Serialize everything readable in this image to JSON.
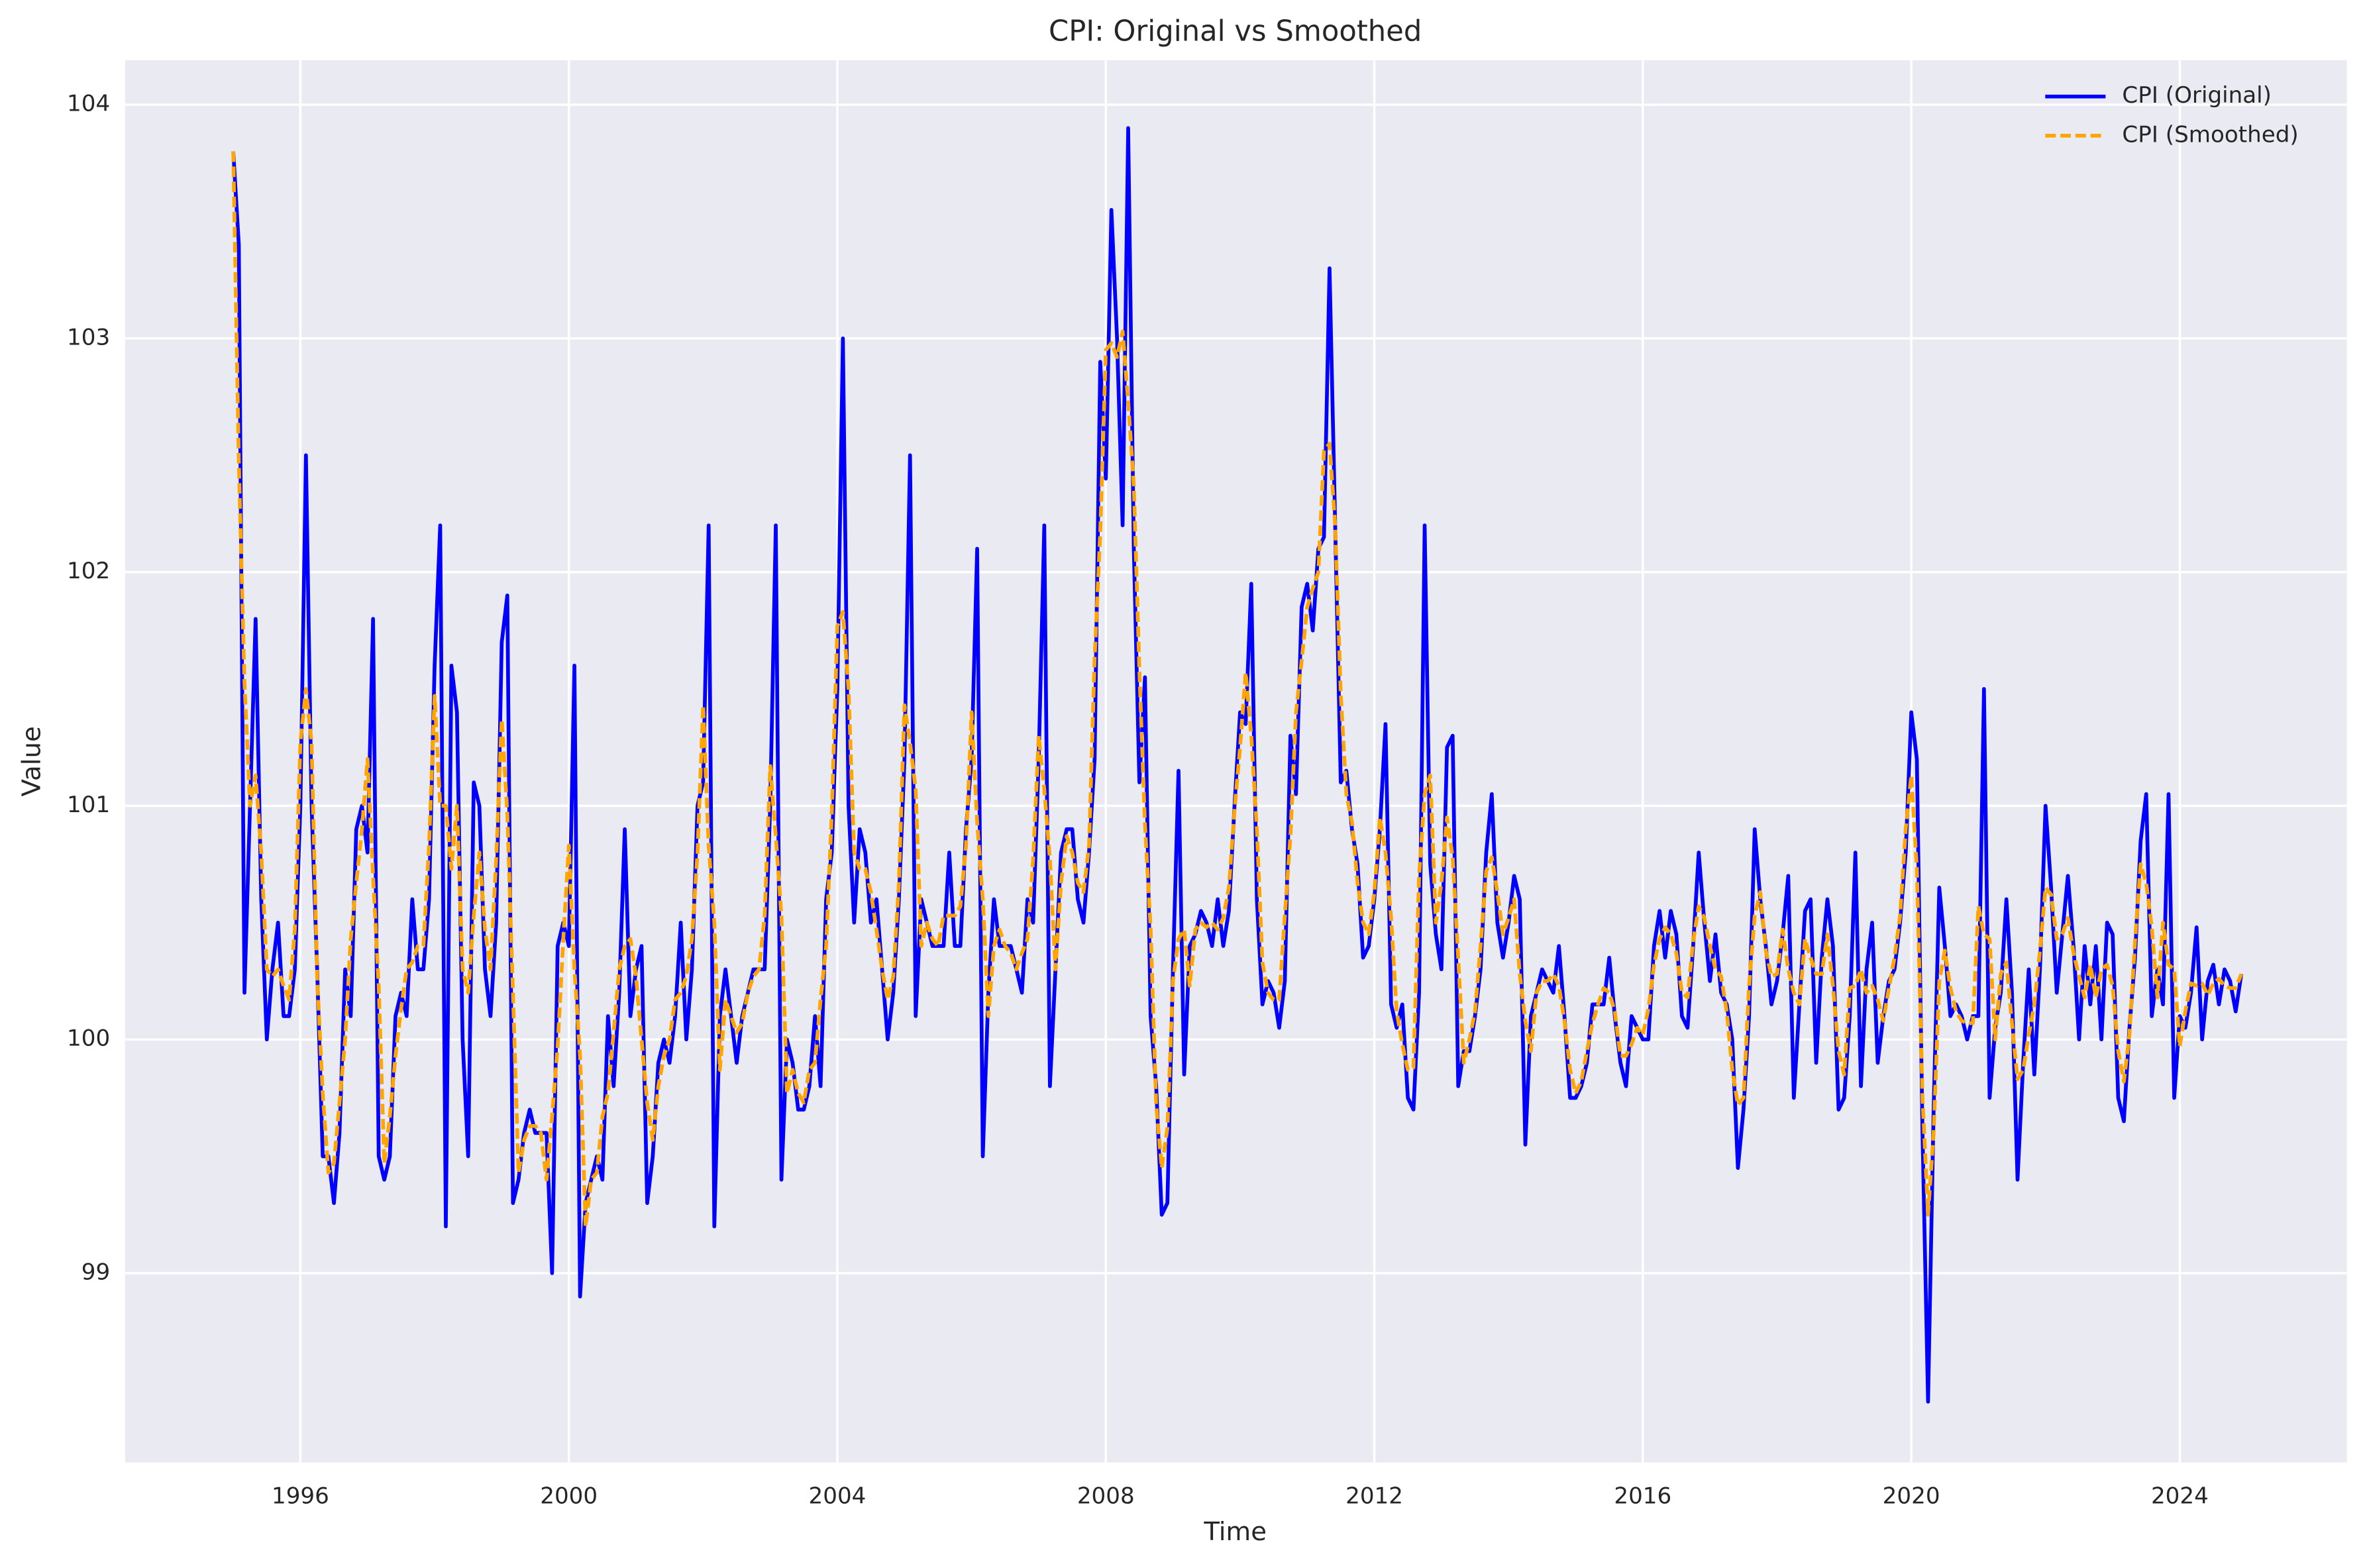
{
  "chart_data": {
    "type": "line",
    "title": "CPI: Original vs Smoothed",
    "x_label": "Time",
    "y_label": "Value",
    "x": [
      1995,
      1995.083,
      1995.167,
      1995.25,
      1995.333,
      1995.417,
      1995.5,
      1995.583,
      1995.667,
      1995.75,
      1995.833,
      1995.917,
      1996,
      1996.083,
      1996.167,
      1996.25,
      1996.333,
      1996.417,
      1996.5,
      1996.583,
      1996.667,
      1996.75,
      1996.833,
      1996.917,
      1997,
      1997.083,
      1997.167,
      1997.25,
      1997.333,
      1997.417,
      1997.5,
      1997.583,
      1997.667,
      1997.75,
      1997.833,
      1997.917,
      1998,
      1998.083,
      1998.167,
      1998.25,
      1998.333,
      1998.417,
      1998.5,
      1998.583,
      1998.667,
      1998.75,
      1998.833,
      1998.917,
      1999,
      1999.083,
      1999.167,
      1999.25,
      1999.333,
      1999.417,
      1999.5,
      1999.583,
      1999.667,
      1999.75,
      1999.833,
      1999.917,
      2000,
      2000.083,
      2000.167,
      2000.25,
      2000.333,
      2000.417,
      2000.5,
      2000.583,
      2000.667,
      2000.75,
      2000.833,
      2000.917,
      2001,
      2001.083,
      2001.167,
      2001.25,
      2001.333,
      2001.417,
      2001.5,
      2001.583,
      2001.667,
      2001.75,
      2001.833,
      2001.917,
      2002,
      2002.083,
      2002.167,
      2002.25,
      2002.333,
      2002.417,
      2002.5,
      2002.583,
      2002.667,
      2002.75,
      2002.833,
      2002.917,
      2003,
      2003.083,
      2003.167,
      2003.25,
      2003.333,
      2003.417,
      2003.5,
      2003.583,
      2003.667,
      2003.75,
      2003.833,
      2003.917,
      2004,
      2004.083,
      2004.167,
      2004.25,
      2004.333,
      2004.417,
      2004.5,
      2004.583,
      2004.667,
      2004.75,
      2004.833,
      2004.917,
      2005,
      2005.083,
      2005.167,
      2005.25,
      2005.333,
      2005.417,
      2005.5,
      2005.583,
      2005.667,
      2005.75,
      2005.833,
      2005.917,
      2006,
      2006.083,
      2006.167,
      2006.25,
      2006.333,
      2006.417,
      2006.5,
      2006.583,
      2006.667,
      2006.75,
      2006.833,
      2006.917,
      2007,
      2007.083,
      2007.167,
      2007.25,
      2007.333,
      2007.417,
      2007.5,
      2007.583,
      2007.667,
      2007.75,
      2007.833,
      2007.917,
      2008,
      2008.083,
      2008.167,
      2008.25,
      2008.333,
      2008.417,
      2008.5,
      2008.583,
      2008.667,
      2008.75,
      2008.833,
      2008.917,
      2009,
      2009.083,
      2009.167,
      2009.25,
      2009.333,
      2009.417,
      2009.5,
      2009.583,
      2009.667,
      2009.75,
      2009.833,
      2009.917,
      2010,
      2010.083,
      2010.167,
      2010.25,
      2010.333,
      2010.417,
      2010.5,
      2010.583,
      2010.667,
      2010.75,
      2010.833,
      2010.917,
      2011,
      2011.083,
      2011.167,
      2011.25,
      2011.333,
      2011.417,
      2011.5,
      2011.583,
      2011.667,
      2011.75,
      2011.833,
      2011.917,
      2012,
      2012.083,
      2012.167,
      2012.25,
      2012.333,
      2012.417,
      2012.5,
      2012.583,
      2012.667,
      2012.75,
      2012.833,
      2012.917,
      2013,
      2013.083,
      2013.167,
      2013.25,
      2013.333,
      2013.417,
      2013.5,
      2013.583,
      2013.667,
      2013.75,
      2013.833,
      2013.917,
      2014,
      2014.083,
      2014.167,
      2014.25,
      2014.333,
      2014.417,
      2014.5,
      2014.583,
      2014.667,
      2014.75,
      2014.833,
      2014.917,
      2015,
      2015.083,
      2015.167,
      2015.25,
      2015.333,
      2015.417,
      2015.5,
      2015.583,
      2015.667,
      2015.75,
      2015.833,
      2015.917,
      2016,
      2016.083,
      2016.167,
      2016.25,
      2016.333,
      2016.417,
      2016.5,
      2016.583,
      2016.667,
      2016.75,
      2016.833,
      2016.917,
      2017,
      2017.083,
      2017.167,
      2017.25,
      2017.333,
      2017.417,
      2017.5,
      2017.583,
      2017.667,
      2017.75,
      2017.833,
      2017.917,
      2018,
      2018.083,
      2018.167,
      2018.25,
      2018.333,
      2018.417,
      2018.5,
      2018.583,
      2018.667,
      2018.75,
      2018.833,
      2018.917,
      2019,
      2019.083,
      2019.167,
      2019.25,
      2019.333,
      2019.417,
      2019.5,
      2019.583,
      2019.667,
      2019.75,
      2019.833,
      2019.917,
      2020,
      2020.083,
      2020.167,
      2020.25,
      2020.333,
      2020.417,
      2020.5,
      2020.583,
      2020.667,
      2020.75,
      2020.833,
      2020.917,
      2021,
      2021.083,
      2021.167,
      2021.25,
      2021.333,
      2021.417,
      2021.5,
      2021.583,
      2021.667,
      2021.75,
      2021.833,
      2021.917,
      2022,
      2022.083,
      2022.167,
      2022.25,
      2022.333,
      2022.417,
      2022.5,
      2022.583,
      2022.667,
      2022.75,
      2022.833,
      2022.917,
      2023,
      2023.083,
      2023.167,
      2023.25,
      2023.333,
      2023.417,
      2023.5,
      2023.583,
      2023.667,
      2023.75,
      2023.833,
      2023.917,
      2024,
      2024.083,
      2024.167,
      2024.25,
      2024.333,
      2024.417,
      2024.5,
      2024.583,
      2024.667,
      2024.75,
      2024.833,
      2024.917
    ],
    "series": [
      {
        "name": "CPI (Original)",
        "color": "#0000ff",
        "linestyle": "solid",
        "values": [
          103.8,
          103.4,
          100.2,
          101.0,
          101.8,
          100.6,
          100.0,
          100.3,
          100.5,
          100.1,
          100.1,
          100.3,
          101.0,
          102.5,
          101.0,
          100.3,
          99.5,
          99.5,
          99.3,
          99.6,
          100.3,
          100.1,
          100.9,
          101.0,
          100.8,
          101.8,
          99.5,
          99.4,
          99.5,
          100.1,
          100.2,
          100.1,
          100.6,
          100.3,
          100.3,
          100.6,
          101.6,
          102.2,
          99.2,
          101.6,
          101.4,
          100.0,
          99.5,
          101.1,
          101.0,
          100.3,
          100.1,
          100.5,
          101.7,
          101.9,
          99.3,
          99.4,
          99.6,
          99.7,
          99.6,
          99.6,
          99.6,
          99.0,
          100.4,
          100.5,
          100.4,
          101.6,
          98.9,
          99.3,
          99.4,
          99.5,
          99.4,
          100.1,
          99.8,
          100.2,
          100.9,
          100.1,
          100.3,
          100.4,
          99.3,
          99.5,
          99.9,
          100.0,
          99.9,
          100.1,
          100.5,
          100.0,
          100.3,
          101.0,
          101.1,
          102.2,
          99.2,
          100.1,
          100.3,
          100.1,
          99.9,
          100.1,
          100.2,
          100.3,
          100.3,
          100.3,
          101.0,
          102.2,
          99.4,
          100.0,
          99.9,
          99.7,
          99.7,
          99.8,
          100.1,
          99.8,
          100.6,
          100.8,
          101.5,
          103.0,
          101.0,
          100.5,
          100.9,
          100.8,
          100.5,
          100.6,
          100.3,
          100.0,
          100.2,
          100.6,
          101.2,
          102.5,
          100.1,
          100.6,
          100.5,
          100.4,
          100.4,
          100.4,
          100.8,
          100.4,
          100.4,
          100.9,
          101.2,
          102.1,
          99.5,
          100.2,
          100.6,
          100.4,
          100.4,
          100.4,
          100.3,
          100.2,
          100.6,
          100.5,
          101.2,
          102.2,
          99.8,
          100.3,
          100.8,
          100.9,
          100.9,
          100.6,
          100.5,
          100.8,
          101.2,
          102.9,
          102.4,
          103.55,
          103.0,
          102.2,
          103.9,
          102.1,
          101.1,
          101.55,
          100.1,
          99.8,
          99.25,
          99.3,
          100.3,
          101.15,
          99.85,
          100.4,
          100.45,
          100.55,
          100.5,
          100.4,
          100.6,
          100.4,
          100.55,
          101.0,
          101.4,
          101.35,
          101.95,
          100.6,
          100.15,
          100.25,
          100.2,
          100.05,
          100.25,
          101.3,
          101.05,
          101.85,
          101.95,
          101.75,
          102.1,
          102.15,
          103.3,
          102.2,
          101.1,
          101.15,
          100.9,
          100.75,
          100.35,
          100.4,
          100.6,
          100.9,
          101.35,
          100.15,
          100.05,
          100.15,
          99.75,
          99.7,
          100.2,
          102.2,
          100.75,
          100.45,
          100.3,
          101.25,
          101.3,
          99.8,
          99.95,
          99.95,
          100.1,
          100.3,
          100.8,
          101.05,
          100.5,
          100.35,
          100.5,
          100.7,
          100.6,
          99.55,
          100.1,
          100.2,
          100.3,
          100.25,
          100.2,
          100.4,
          100.1,
          99.75,
          99.75,
          99.8,
          99.9,
          100.15,
          100.15,
          100.15,
          100.35,
          100.1,
          99.9,
          99.8,
          100.1,
          100.05,
          100.0,
          100.0,
          100.4,
          100.55,
          100.35,
          100.55,
          100.45,
          100.1,
          100.05,
          100.4,
          100.8,
          100.5,
          100.25,
          100.45,
          100.2,
          100.15,
          100.0,
          99.45,
          99.7,
          100.1,
          100.9,
          100.6,
          100.4,
          100.15,
          100.25,
          100.45,
          100.7,
          99.75,
          100.15,
          100.55,
          100.6,
          99.9,
          100.35,
          100.6,
          100.4,
          99.7,
          99.75,
          100.1,
          100.8,
          99.8,
          100.3,
          100.5,
          99.9,
          100.1,
          100.25,
          100.3,
          100.5,
          100.8,
          101.4,
          101.2,
          99.6,
          98.45,
          99.7,
          100.65,
          100.4,
          100.1,
          100.15,
          100.1,
          100.0,
          100.1,
          100.1,
          101.5,
          99.75,
          100.05,
          100.2,
          100.6,
          100.2,
          99.4,
          99.9,
          100.3,
          99.85,
          100.3,
          101.0,
          100.65,
          100.2,
          100.45,
          100.7,
          100.4,
          100.0,
          100.4,
          100.15,
          100.4,
          100.0,
          100.5,
          100.45,
          99.75,
          99.65,
          100.05,
          100.35,
          100.85,
          101.05,
          100.1,
          100.3,
          100.15,
          101.05,
          99.75,
          100.1,
          100.05,
          100.2,
          100.48,
          100.0,
          100.25,
          100.32,
          100.15,
          100.3,
          100.25,
          100.12,
          100.28
        ]
      },
      {
        "name": "CPI (Smoothed)",
        "color": "#ffa500",
        "linestyle": "dashed",
        "values": [
          103.8,
          102.47,
          101.53,
          101.0,
          101.13,
          100.8,
          100.3,
          100.27,
          100.3,
          100.23,
          100.17,
          100.47,
          101.27,
          101.5,
          101.27,
          100.27,
          99.77,
          99.43,
          99.47,
          99.73,
          100.0,
          100.43,
          100.67,
          100.9,
          101.2,
          100.7,
          100.23,
          99.47,
          99.67,
          99.93,
          100.13,
          100.3,
          100.33,
          100.4,
          100.4,
          100.83,
          101.47,
          101.0,
          101.0,
          100.73,
          101.0,
          100.3,
          100.2,
          100.53,
          100.8,
          100.47,
          100.3,
          100.77,
          101.37,
          100.97,
          100.2,
          99.43,
          99.57,
          99.63,
          99.63,
          99.6,
          99.4,
          99.67,
          99.97,
          100.43,
          100.83,
          100.3,
          99.93,
          99.2,
          99.4,
          99.43,
          99.67,
          99.77,
          100.03,
          100.3,
          100.4,
          100.43,
          100.27,
          100.0,
          99.73,
          99.57,
          99.8,
          99.93,
          100.0,
          100.17,
          100.2,
          100.27,
          100.43,
          100.8,
          101.43,
          100.83,
          100.5,
          99.87,
          100.17,
          100.1,
          100.03,
          100.07,
          100.2,
          100.27,
          100.3,
          100.53,
          101.17,
          100.87,
          100.53,
          99.77,
          99.87,
          99.77,
          99.73,
          99.87,
          99.9,
          100.17,
          100.4,
          100.97,
          101.77,
          101.83,
          101.5,
          100.8,
          100.73,
          100.73,
          100.63,
          100.47,
          100.3,
          100.17,
          100.27,
          100.67,
          101.43,
          101.27,
          101.07,
          100.4,
          100.5,
          100.43,
          100.4,
          100.53,
          100.53,
          100.53,
          100.57,
          100.83,
          101.4,
          100.93,
          100.6,
          100.1,
          100.4,
          100.47,
          100.4,
          100.37,
          100.3,
          100.37,
          100.43,
          100.77,
          101.3,
          101.07,
          100.77,
          100.3,
          100.67,
          100.87,
          100.8,
          100.67,
          100.63,
          100.83,
          101.63,
          102.17,
          102.95,
          102.98,
          102.92,
          103.03,
          102.73,
          102.37,
          101.58,
          100.92,
          100.48,
          99.72,
          99.45,
          99.62,
          100.25,
          100.43,
          100.47,
          100.23,
          100.47,
          100.5,
          100.48,
          100.5,
          100.47,
          100.52,
          100.65,
          100.98,
          101.25,
          101.57,
          101.3,
          100.9,
          100.33,
          100.2,
          100.17,
          100.17,
          100.53,
          100.87,
          101.4,
          101.62,
          101.85,
          101.93,
          102.0,
          102.52,
          102.55,
          102.2,
          101.48,
          101.05,
          100.93,
          100.67,
          100.5,
          100.45,
          100.63,
          100.95,
          100.8,
          100.52,
          100.12,
          99.98,
          99.87,
          99.88,
          100.7,
          101.05,
          101.13,
          100.5,
          100.67,
          100.95,
          100.78,
          100.35,
          99.9,
          100.0,
          100.12,
          100.4,
          100.72,
          100.78,
          100.63,
          100.45,
          100.52,
          100.6,
          100.28,
          100.08,
          99.95,
          100.2,
          100.25,
          100.25,
          100.28,
          100.23,
          100.08,
          99.87,
          99.77,
          99.82,
          99.95,
          100.07,
          100.15,
          100.22,
          100.2,
          100.12,
          99.93,
          99.93,
          99.98,
          100.05,
          100.02,
          100.13,
          100.32,
          100.43,
          100.48,
          100.45,
          100.37,
          100.2,
          100.18,
          100.42,
          100.57,
          100.52,
          100.4,
          100.3,
          100.27,
          100.12,
          99.87,
          99.72,
          99.75,
          100.23,
          100.53,
          100.63,
          100.38,
          100.27,
          100.28,
          100.47,
          100.3,
          100.2,
          100.15,
          100.43,
          100.35,
          100.28,
          100.28,
          100.45,
          100.23,
          99.95,
          99.85,
          100.22,
          100.23,
          100.3,
          100.2,
          100.23,
          100.17,
          100.08,
          100.22,
          100.35,
          100.53,
          100.9,
          101.13,
          100.73,
          99.75,
          99.25,
          99.6,
          100.25,
          100.38,
          100.22,
          100.12,
          100.08,
          100.07,
          100.07,
          100.57,
          100.45,
          100.43,
          100.0,
          100.28,
          100.33,
          100.07,
          99.83,
          99.87,
          100.02,
          100.15,
          100.38,
          100.65,
          100.62,
          100.43,
          100.45,
          100.52,
          100.37,
          100.27,
          100.18,
          100.32,
          100.18,
          100.3,
          100.32,
          100.23,
          99.95,
          99.82,
          100.02,
          100.42,
          100.75,
          100.67,
          100.48,
          100.18,
          100.5,
          100.32,
          100.3,
          99.97,
          100.12,
          100.24,
          100.23,
          100.24,
          100.19,
          100.24,
          100.26,
          100.23,
          100.22,
          100.22,
          100.28
        ]
      }
    ],
    "xlim": [
      1993.39,
      2026.49
    ],
    "xticks": [
      1996,
      2000,
      2004,
      2008,
      2012,
      2016,
      2020,
      2024
    ],
    "ylim": [
      98.19,
      104.19
    ],
    "yticks": [
      99,
      100,
      101,
      102,
      103,
      104
    ],
    "grid": true,
    "legend": "upper right"
  }
}
